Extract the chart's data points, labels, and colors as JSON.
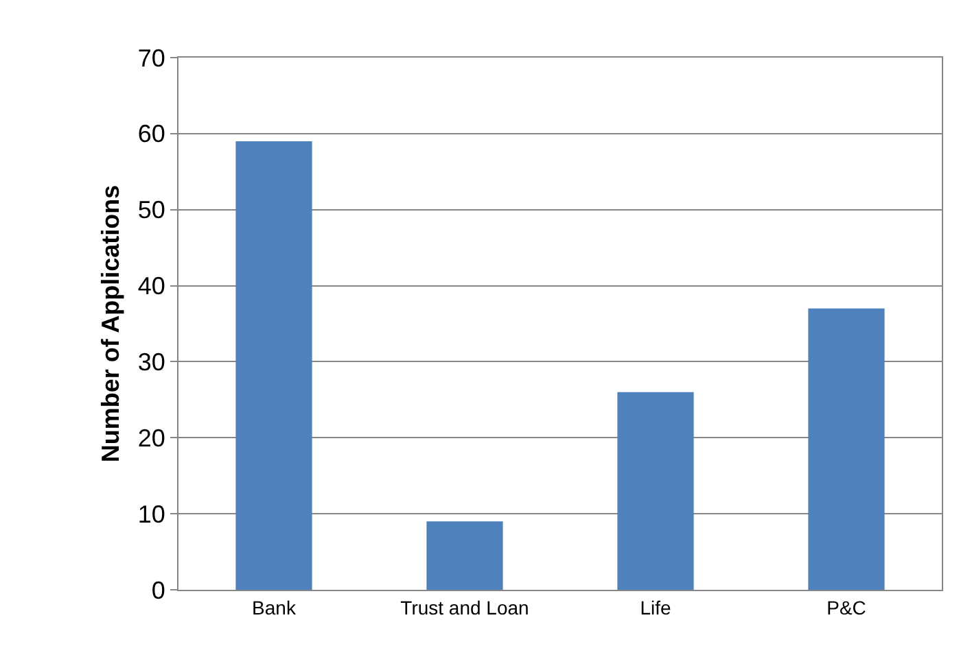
{
  "chart_data": {
    "type": "bar",
    "ylabel": "Number of Applications",
    "categories": [
      "Bank",
      "Trust and Loan",
      "Life",
      "P&C"
    ],
    "values": [
      59,
      9,
      26,
      37
    ],
    "color": "#4f81bd",
    "ylim": [
      0,
      70
    ],
    "yticks": [
      0,
      10,
      20,
      30,
      40,
      50,
      60,
      70
    ],
    "grid": "y"
  }
}
